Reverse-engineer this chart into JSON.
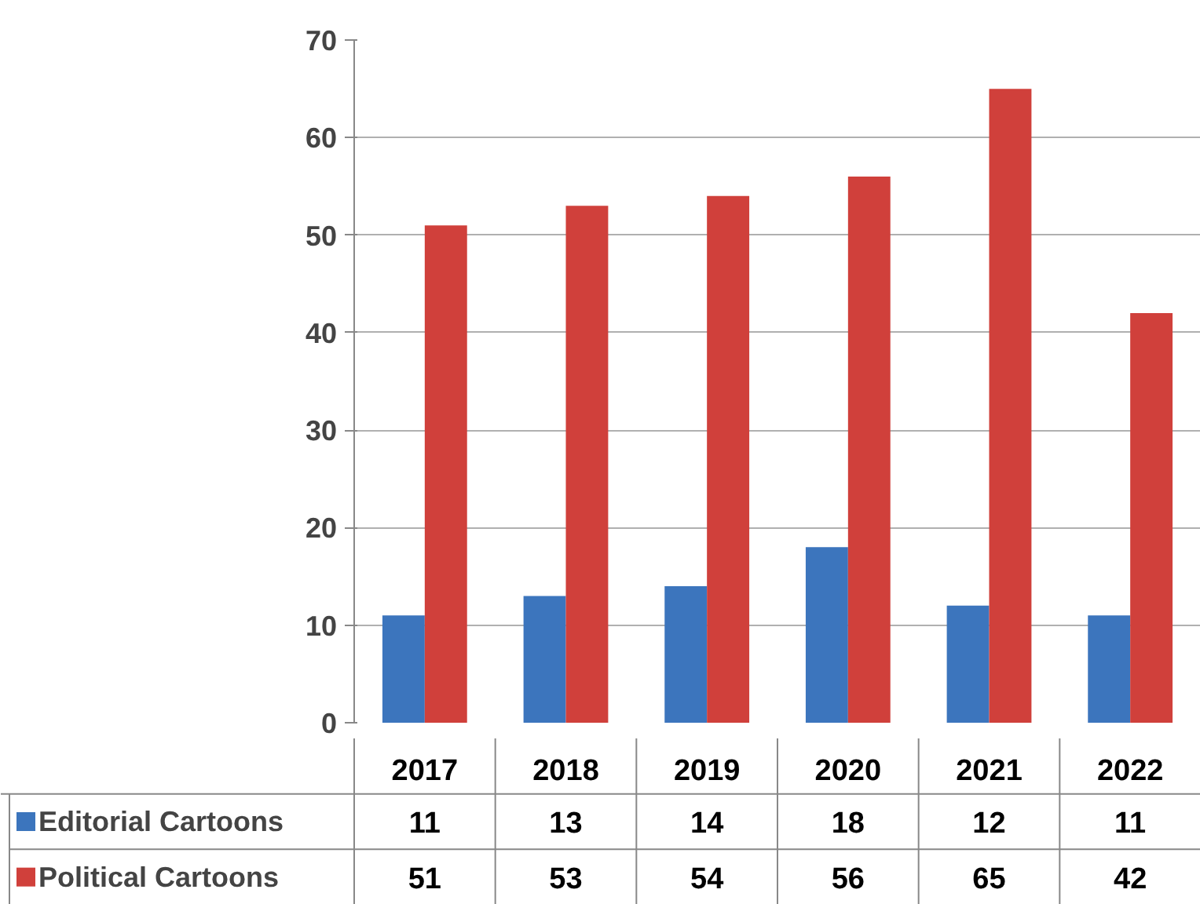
{
  "chart_data": {
    "type": "bar",
    "categories": [
      "2017",
      "2018",
      "2019",
      "2020",
      "2021",
      "2022"
    ],
    "series": [
      {
        "name": "Editorial Cartoons",
        "color": "#3c75bd",
        "values": [
          11,
          13,
          14,
          18,
          12,
          11
        ]
      },
      {
        "name": "Political Cartoons",
        "color": "#d0403b",
        "values": [
          51,
          53,
          54,
          56,
          65,
          42
        ]
      }
    ],
    "ylim": [
      0,
      70
    ],
    "yticks": [
      0,
      10,
      20,
      30,
      40,
      50,
      60,
      70
    ],
    "grid": "y",
    "data_labels": true,
    "legend": "bottom"
  }
}
